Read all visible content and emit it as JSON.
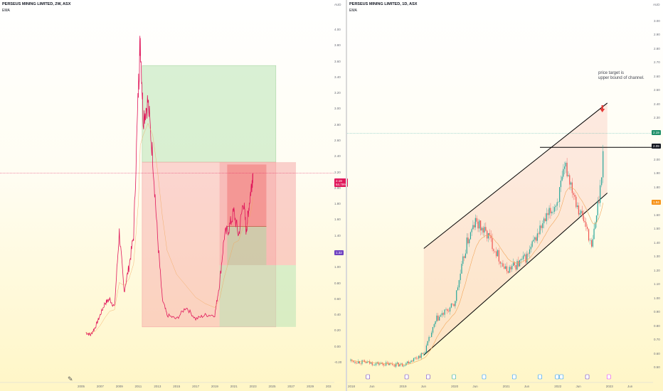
{
  "colors": {
    "line_left": "#e0185b",
    "candle_up": "#26a69a",
    "candle_down": "#ef5350",
    "ema": "#f2a65a",
    "channel_fill": "#f8c4b4",
    "loss_box": "#f6a4a4",
    "profit_box": "#b9e3b5",
    "pill_price": "#e0185b",
    "pill_ema": "#6f42c1",
    "pill_green": "#1e8f6a",
    "pill_black": "#131722",
    "pill_orange": "#f7931a",
    "arrow": "#e53935"
  },
  "left_chart": {
    "title": "PERSEUS MINING LIMITED, 2W, ASX",
    "indicator": "EMA",
    "currency": "AUD",
    "price_pill": "2.19",
    "price_pill_sub": "64.79%",
    "ema_pill": "1.32",
    "y_axis_labels": [
      "4.00",
      "3.80",
      "3.60",
      "3.40",
      "3.20",
      "3.00",
      "2.80",
      "2.60",
      "2.40",
      "2.20",
      "2.00",
      "1.80",
      "1.60",
      "1.40",
      "1.20",
      "1.00",
      "0.80",
      "0.60",
      "0.40",
      "0.20",
      "0.00",
      "-0.20"
    ],
    "x_axis_labels": [
      "2005",
      "2007",
      "2009",
      "2011",
      "2013",
      "2015",
      "2017",
      "2019",
      "2021",
      "2023",
      "2025",
      "2027",
      "2029",
      "203"
    ]
  },
  "right_chart": {
    "title": "PERSEUS MINING LIMITED, 1D, ASX",
    "indicator": "EMA",
    "currency": "AUD",
    "annotation_line1": "price target is",
    "annotation_line2": "upper bound of channel.",
    "pill_green": "2.19",
    "pill_black": "2.09",
    "pill_orange": "1.84",
    "y_axis_labels": [
      "3.00",
      "2.90",
      "2.80",
      "2.70",
      "2.60",
      "2.50",
      "2.40",
      "2.30",
      "2.20",
      "2.10",
      "2.00",
      "1.90",
      "1.80",
      "1.70",
      "1.60",
      "1.50",
      "1.40",
      "1.30",
      "1.20",
      "1.10",
      "1.00",
      "0.90",
      "0.80",
      "0.70",
      "0.60",
      "0.50"
    ],
    "x_axis_labels": [
      "2018",
      "Jun",
      "2019",
      "Jun",
      "2020",
      "Jun",
      "2021",
      "Jun",
      "2022",
      "Jun",
      "2023",
      "Jun"
    ]
  },
  "chart_data": [
    {
      "type": "line",
      "title": "PERSEUS MINING LIMITED, 2W, ASX",
      "ylim": [
        -0.2,
        4.0
      ],
      "x": [
        2005.5,
        2006,
        2006.5,
        2007,
        2007.5,
        2008,
        2008.5,
        2009,
        2009.5,
        2010,
        2010.5,
        2011,
        2011.2,
        2011.5,
        2012,
        2012.5,
        2013,
        2013.5,
        2014,
        2015,
        2016,
        2017,
        2018,
        2019,
        2019.5,
        2020,
        2020.5,
        2021,
        2021.5,
        2022,
        2022.3,
        2022.5,
        2022.8,
        2023
      ],
      "series": [
        {
          "values": [
            0.18,
            0.15,
            0.25,
            0.4,
            0.55,
            0.6,
            0.5,
            1.45,
            0.7,
            1.0,
            1.4,
            3.25,
            3.9,
            2.9,
            3.1,
            2.4,
            1.4,
            0.6,
            0.4,
            0.35,
            0.5,
            0.35,
            0.4,
            0.4,
            0.8,
            1.4,
            1.5,
            1.7,
            1.4,
            1.85,
            1.45,
            1.7,
            2.0,
            2.19
          ]
        }
      ]
    },
    {
      "type": "line",
      "title": "PERSEUS MINING LIMITED, 1D, ASX",
      "ylim": [
        0.5,
        3.0
      ],
      "x": [
        "2018-01",
        "2018-06",
        "2019-01",
        "2019-06",
        "2019-09",
        "2020-01",
        "2020-04",
        "2020-06",
        "2020-09",
        "2021-01",
        "2021-04",
        "2021-06",
        "2021-09",
        "2022-01",
        "2022-03",
        "2022-06",
        "2022-08",
        "2022-09",
        "2022-11",
        "2022-12"
      ],
      "series": [
        {
          "values": [
            0.55,
            0.53,
            0.52,
            0.6,
            0.85,
            0.95,
            1.4,
            1.55,
            1.45,
            1.2,
            1.25,
            1.3,
            1.5,
            1.7,
            1.95,
            1.65,
            1.5,
            1.35,
            1.8,
            2.19
          ]
        }
      ]
    }
  ]
}
